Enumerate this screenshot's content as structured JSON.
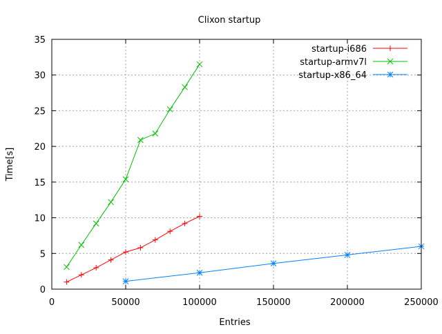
{
  "chart_data": {
    "type": "line",
    "title": "Clixon startup",
    "xlabel": "Entries",
    "ylabel": "Time[s]",
    "xlim": [
      0,
      250000
    ],
    "ylim": [
      0,
      35
    ],
    "xticks": [
      0,
      50000,
      100000,
      150000,
      200000,
      250000
    ],
    "yticks": [
      0,
      5,
      10,
      15,
      20,
      25,
      30,
      35
    ],
    "grid": true,
    "legend_position": "top-right",
    "series": [
      {
        "name": "startup-i686",
        "color": "#ff0000",
        "marker": "plus",
        "x": [
          10000,
          20000,
          30000,
          40000,
          50000,
          60000,
          70000,
          80000,
          90000,
          100000
        ],
        "y": [
          1.0,
          2.0,
          3.0,
          4.1,
          5.2,
          5.8,
          6.9,
          8.1,
          9.2,
          10.2
        ]
      },
      {
        "name": "startup-armv7l",
        "color": "#00c000",
        "marker": "cross",
        "x": [
          10000,
          20000,
          30000,
          40000,
          50000,
          60000,
          70000,
          80000,
          90000,
          100000
        ],
        "y": [
          3.1,
          6.2,
          9.2,
          12.2,
          15.4,
          20.9,
          21.8,
          25.2,
          28.3,
          31.5
        ]
      },
      {
        "name": "startup-x86_64",
        "color": "#0080ff",
        "marker": "star",
        "x": [
          50000,
          100000,
          150000,
          200000,
          250000
        ],
        "y": [
          1.1,
          2.3,
          3.6,
          4.8,
          6.0
        ]
      }
    ]
  }
}
